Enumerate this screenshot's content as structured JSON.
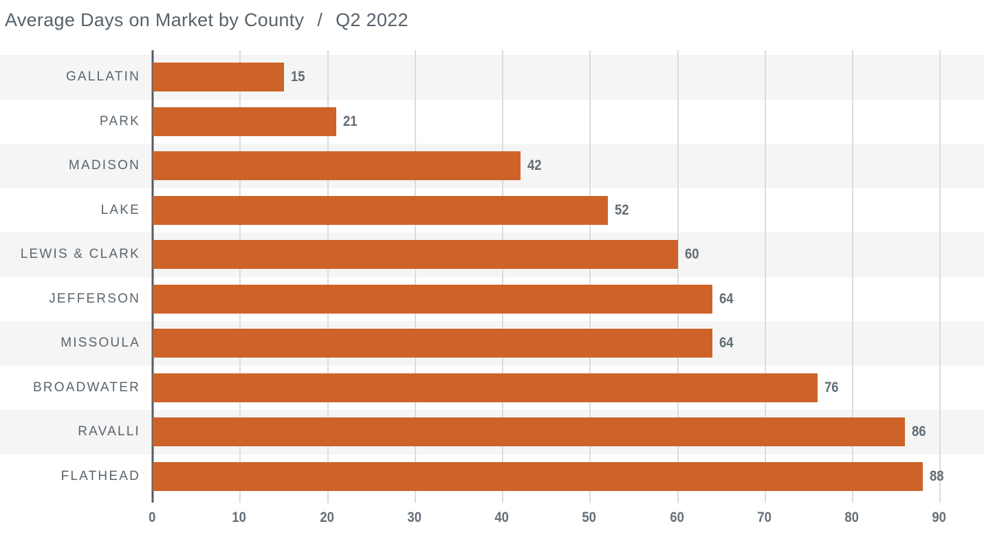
{
  "header": {
    "title": "Average Days on Market by County",
    "separator": "/",
    "subtitle": "Q2 2022"
  },
  "chart_data": {
    "type": "bar",
    "orientation": "horizontal",
    "title": "Average Days on Market by County / Q2 2022",
    "categories": [
      "GALLATIN",
      "PARK",
      "MADISON",
      "LAKE",
      "LEWIS & CLARK",
      "JEFFERSON",
      "MISSOULA",
      "BROADWATER",
      "RAVALLI",
      "FLATHEAD"
    ],
    "values": [
      15,
      21,
      42,
      52,
      60,
      64,
      64,
      76,
      86,
      88
    ],
    "value_labels_shown": true,
    "xlabel": "",
    "ylabel": "",
    "xlim": [
      0,
      95
    ],
    "xticks": [
      0,
      10,
      20,
      30,
      40,
      50,
      60,
      70,
      80,
      90
    ],
    "grid": "vertical",
    "legend": "none",
    "colors": {
      "bar": "#cd6328",
      "row_stripe": "#f5f5f6",
      "gridline": "#dadcdd",
      "axis_line": "#545d63",
      "title_text": "#57626c",
      "category_text": "#5a646c",
      "value_text": "#626c73",
      "tick_text": "#666f77",
      "background": "#ffffff"
    }
  }
}
